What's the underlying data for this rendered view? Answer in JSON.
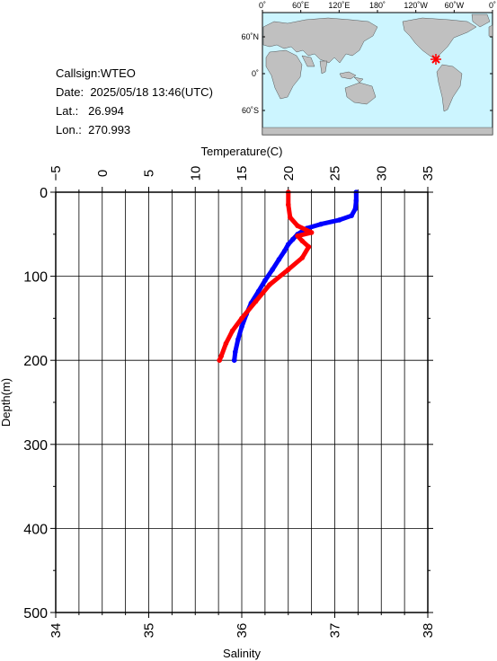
{
  "info": {
    "callsign": "Callsign:WTEO",
    "date_label": "Date:",
    "date_value": "2025/05/18 13:46(UTC)",
    "lat_label": "Lat.:",
    "lat_value": "26.994",
    "lon_label": "Lon.:",
    "lon_value": "270.993"
  },
  "map": {
    "lon_ticks": [
      "0˚",
      "60˚E",
      "120˚E",
      "180˚",
      "120˚W",
      "60˚W",
      "0˚"
    ],
    "lat_ticks": [
      "60˚N",
      "0˚",
      "60˚S"
    ],
    "marker_color": "#ff0000",
    "ocean_color": "#ccf5ff",
    "land_color": "#c0c0c0"
  },
  "chart_data": {
    "type": "line",
    "top_axis": {
      "label": "Temperature(C)",
      "ticks": [
        "−5",
        "0",
        "5",
        "10",
        "15",
        "20",
        "25",
        "30",
        "35"
      ],
      "range": [
        -5,
        35
      ]
    },
    "bottom_axis": {
      "label": "Salinity",
      "ticks": [
        "34",
        "35",
        "36",
        "37",
        "38"
      ],
      "range": [
        34,
        38
      ]
    },
    "left_axis": {
      "label": "Depth(m)",
      "ticks": [
        "0",
        "100",
        "200",
        "300",
        "400",
        "500"
      ],
      "range": [
        0,
        500
      ],
      "inverted": true
    },
    "grid": true,
    "series": [
      {
        "color": "#0000ff",
        "axis": "temperature",
        "points": [
          [
            27.3,
            0
          ],
          [
            27.3,
            10
          ],
          [
            27.2,
            20
          ],
          [
            26.8,
            28
          ],
          [
            25.5,
            33
          ],
          [
            23.5,
            38
          ],
          [
            22,
            43
          ],
          [
            21,
            50
          ],
          [
            20.5,
            56
          ],
          [
            20,
            62
          ],
          [
            19.6,
            70
          ],
          [
            19,
            80
          ],
          [
            18.3,
            92
          ],
          [
            17.5,
            105
          ],
          [
            16.8,
            118
          ],
          [
            16,
            132
          ],
          [
            15.5,
            145
          ],
          [
            15,
            160
          ],
          [
            14.6,
            175
          ],
          [
            14.3,
            190
          ],
          [
            14.2,
            200
          ]
        ]
      },
      {
        "color": "#ff0000",
        "axis": "salinity",
        "points": [
          [
            36.5,
            0
          ],
          [
            36.5,
            15
          ],
          [
            36.52,
            30
          ],
          [
            36.6,
            40
          ],
          [
            36.75,
            48
          ],
          [
            36.6,
            52
          ],
          [
            36.65,
            58
          ],
          [
            36.72,
            65
          ],
          [
            36.65,
            78
          ],
          [
            36.5,
            92
          ],
          [
            36.3,
            110
          ],
          [
            36.15,
            130
          ],
          [
            36.0,
            150
          ],
          [
            35.9,
            165
          ],
          [
            35.83,
            180
          ],
          [
            35.78,
            195
          ],
          [
            35.76,
            200
          ]
        ]
      }
    ]
  }
}
